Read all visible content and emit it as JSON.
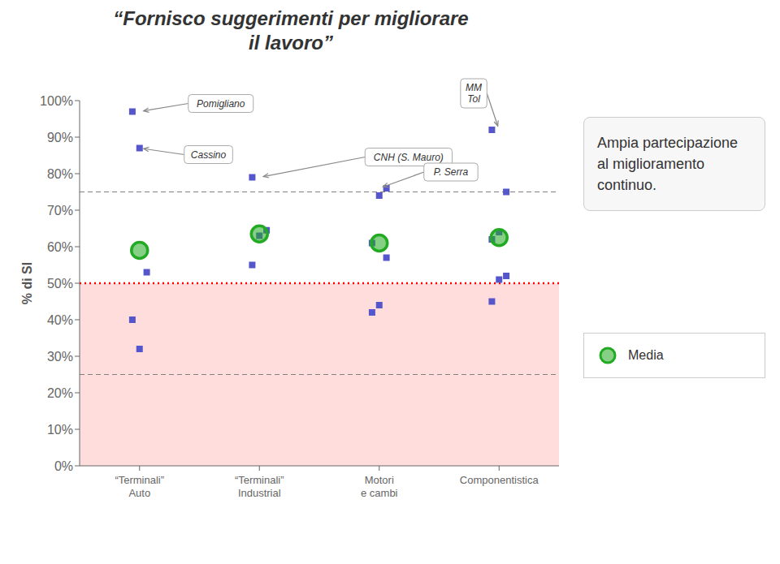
{
  "chart_data": {
    "type": "scatter",
    "title": "“Fornisco suggerimenti per migliorare\nil lavoro”",
    "y_label": "% di SI",
    "categories": [
      "“Terminali”\nAuto",
      "“Terminali”\nIndustrial",
      "Motori\ne cambi",
      "Componentistica"
    ],
    "series": [
      {
        "values": [
          [
            0.4,
            0.32,
            0.53,
            0.97,
            0.87
          ],
          [
            0.55,
            0.63,
            0.645,
            0.79
          ],
          [
            0.42,
            0.44,
            0.57,
            0.61,
            0.74,
            0.76
          ],
          [
            0.45,
            0.51,
            0.52,
            0.62,
            0.64,
            0.75,
            0.92
          ]
        ],
        "color": "#5555cc",
        "marker": "square"
      },
      {
        "name": "Media",
        "values": [
          0.59,
          0.635,
          0.61,
          0.625
        ],
        "color": "#22aa22",
        "marker": "circle"
      }
    ],
    "ylim": [
      0,
      1.0
    ],
    "yticks": [
      {
        "value": 0.0,
        "label": "0%"
      },
      {
        "value": 0.1,
        "label": "10%"
      },
      {
        "value": 0.2,
        "label": "20%"
      },
      {
        "value": 0.3,
        "label": "30%"
      },
      {
        "value": 0.4,
        "label": "40%"
      },
      {
        "value": 0.5,
        "label": "50%"
      },
      {
        "value": 0.6,
        "label": "60%"
      },
      {
        "value": 0.7,
        "label": "70%"
      },
      {
        "value": 0.8,
        "label": "80%"
      },
      {
        "value": 0.9,
        "label": "90%"
      },
      {
        "value": 1.0,
        "label": "100%"
      }
    ],
    "grid": false,
    "reference_lines": [
      {
        "value": 0.5,
        "color": "red",
        "line_style": "dotted"
      },
      {
        "value": 0.75,
        "color": "gray",
        "line_style": "dashed"
      },
      {
        "value": 0.25,
        "color": "gray",
        "line_style": "dashed"
      }
    ],
    "shaded_band": {
      "from": 0,
      "to": 0.5,
      "color": "#ffdddd"
    },
    "annotations": [
      {
        "text": "Pomigliano",
        "category": "“Terminali”\nAuto",
        "value": 0.97
      },
      {
        "text": "Cassino",
        "category": "“Terminali”\nAuto",
        "value": 0.87
      },
      {
        "text": "CNH (S. Mauro)",
        "category": "“Terminali”\nIndustrial",
        "value": 0.79
      },
      {
        "text": "P. Serra",
        "category": "Motori\ne cambi",
        "value": 0.76
      },
      {
        "text": "MM\nTol",
        "category": "Componentistica",
        "value": 0.92
      }
    ],
    "note": "Ampia partecipazione al miglioramento continuo."
  }
}
